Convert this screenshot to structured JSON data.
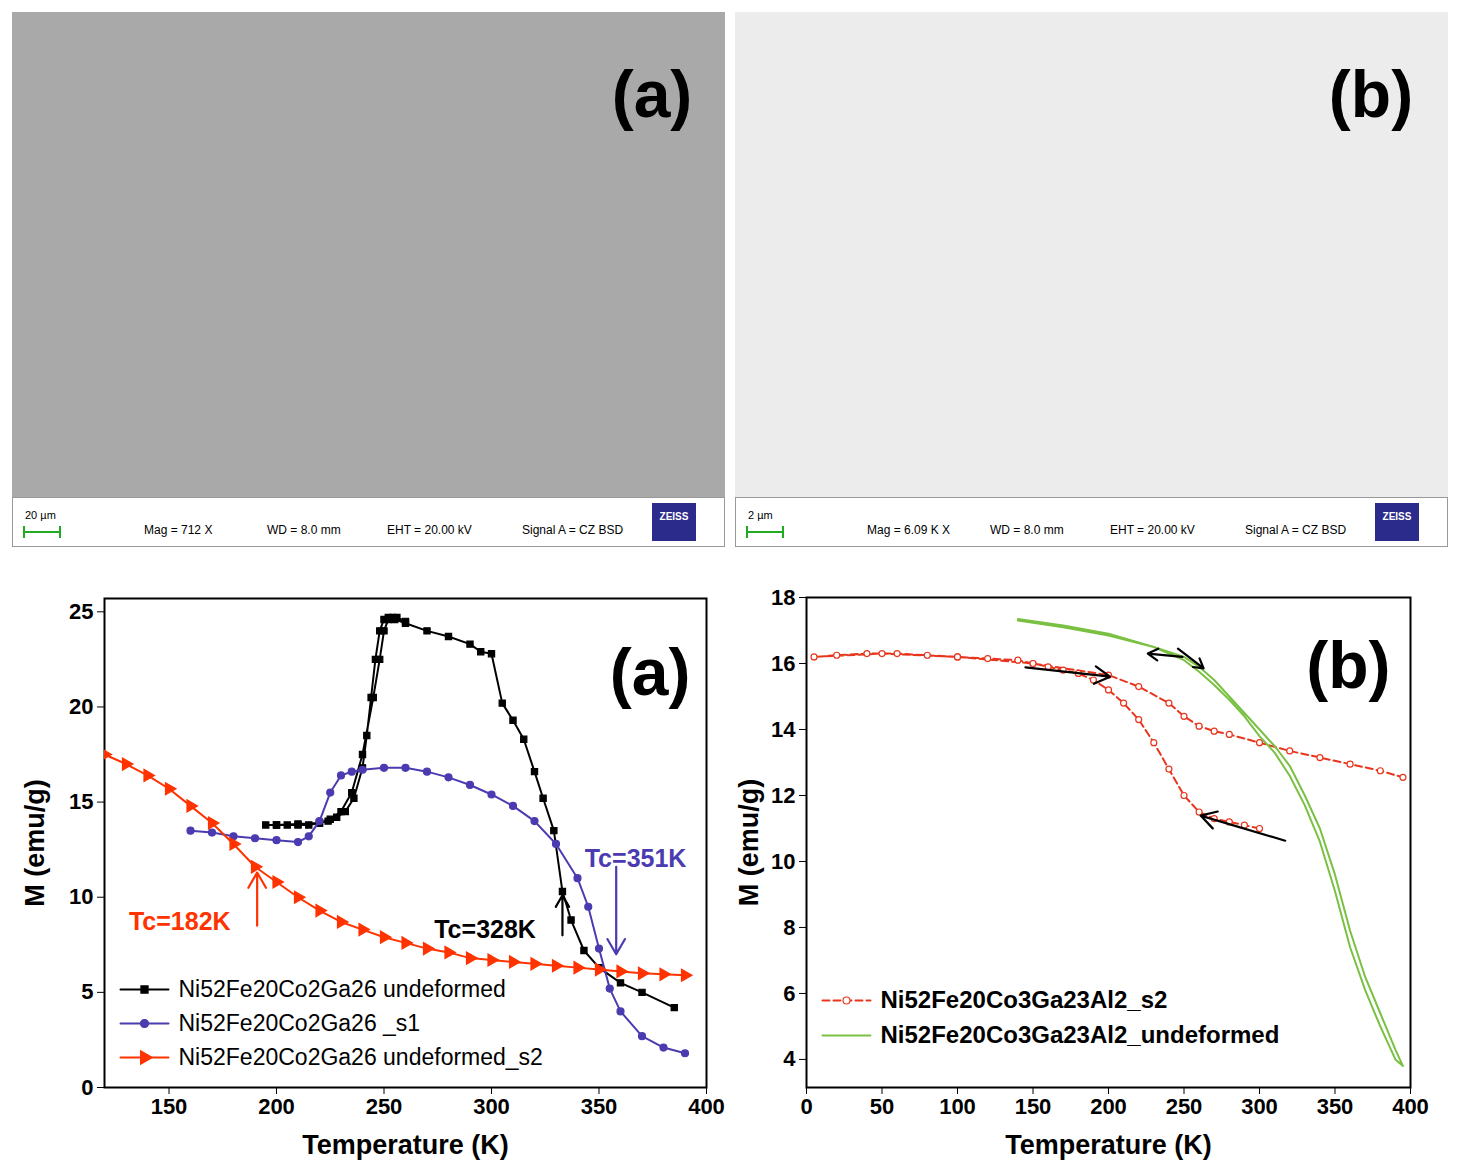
{
  "images": [
    {
      "label": "(a)",
      "scale_bar": "20 µm",
      "mag": "Mag = 712 X",
      "wd": "WD = 8.0 mm",
      "eht": "EHT = 20.00 kV",
      "signal": "Signal A = CZ BSD",
      "logo": "ZEISS"
    },
    {
      "label": "(b)",
      "scale_bar": "2 µm",
      "mag": "Mag = 6.09 K X",
      "wd": "WD = 8.0 mm",
      "eht": "EHT = 20.00 kV",
      "signal": "Signal A = CZ BSD",
      "logo": "ZEISS"
    }
  ],
  "chart_data": [
    {
      "type": "line",
      "panel_label": "(a)",
      "xlabel": "Temperature (K)",
      "ylabel": "M (emu/g)",
      "xlim": [
        120,
        400
      ],
      "ylim": [
        0,
        25.7
      ],
      "xticks": [
        150,
        200,
        250,
        300,
        350,
        400
      ],
      "yticks": [
        0,
        5,
        10,
        15,
        20,
        25
      ],
      "grid": false,
      "legend": "lower left",
      "series": [
        {
          "name": "Ni52Fe20Co2Ga26 undeformed",
          "color": "#000000",
          "marker": "square",
          "line_style": "solid",
          "x": [
            385,
            370,
            360,
            350,
            343,
            337,
            333,
            329,
            324,
            320,
            315,
            310,
            305,
            300,
            295,
            290,
            280,
            270,
            260,
            255,
            252,
            250,
            248,
            246,
            244,
            242,
            240,
            236,
            232,
            228,
            224,
            220,
            215,
            210,
            205,
            200,
            195,
            200,
            210,
            220,
            225,
            230,
            235,
            240,
            245,
            248,
            250,
            252,
            254,
            256,
            260
          ],
          "values": [
            4.2,
            5.0,
            5.5,
            6.3,
            7.2,
            8.8,
            10.3,
            13.5,
            15.2,
            16.6,
            18.3,
            19.3,
            20.2,
            22.8,
            22.9,
            23.3,
            23.7,
            24.0,
            24.4,
            24.6,
            24.7,
            24.6,
            24.0,
            22.5,
            20.5,
            18.5,
            16.8,
            15.2,
            14.5,
            14.2,
            14.0,
            13.9,
            13.8,
            13.8,
            13.8,
            13.8,
            13.8,
            13.8,
            13.85,
            13.9,
            14.1,
            14.5,
            15.5,
            17.5,
            20.5,
            22.5,
            24.0,
            24.6,
            24.7,
            24.7,
            24.5
          ]
        },
        {
          "name": "Ni52Fe20Co2Ga26 _s1",
          "color": "#4b3bb0",
          "marker": "circle",
          "line_style": "solid",
          "x": [
            160,
            170,
            180,
            190,
            200,
            210,
            215,
            220,
            225,
            230,
            235,
            240,
            250,
            260,
            270,
            280,
            290,
            300,
            310,
            320,
            330,
            340,
            345,
            350,
            355,
            360,
            370,
            380,
            390
          ],
          "values": [
            13.5,
            13.4,
            13.2,
            13.1,
            13.0,
            12.9,
            13.2,
            14.0,
            15.5,
            16.4,
            16.6,
            16.7,
            16.8,
            16.8,
            16.6,
            16.3,
            15.9,
            15.4,
            14.8,
            14.0,
            12.8,
            11.0,
            9.5,
            7.3,
            5.2,
            4.0,
            2.7,
            2.1,
            1.8
          ]
        },
        {
          "name": "Ni52Fe20Co2Ga26 undeformed_s2",
          "color": "#ff3300",
          "marker": "triangle-right",
          "line_style": "solid",
          "x": [
            120,
            130,
            140,
            150,
            160,
            170,
            180,
            190,
            200,
            210,
            220,
            230,
            240,
            250,
            260,
            270,
            280,
            290,
            300,
            310,
            320,
            330,
            340,
            350,
            360,
            370,
            380,
            390
          ],
          "values": [
            17.5,
            17.0,
            16.4,
            15.7,
            14.8,
            13.9,
            12.8,
            11.6,
            10.8,
            10.0,
            9.3,
            8.7,
            8.3,
            7.9,
            7.6,
            7.3,
            7.1,
            6.8,
            6.7,
            6.6,
            6.5,
            6.4,
            6.3,
            6.2,
            6.1,
            6.0,
            5.95,
            5.9
          ]
        }
      ],
      "annotations": [
        {
          "text": "Tc=182K",
          "x": 155,
          "y": 8.7,
          "color": "#ff3300",
          "arrow": {
            "x": 191,
            "y1": 8.5,
            "y2": 11.3
          }
        },
        {
          "text": "Tc=328K",
          "x": 297,
          "y": 8.3,
          "color": "#000000",
          "arrow": {
            "x": 333,
            "y1": 8.0,
            "y2": 10.1
          }
        },
        {
          "text": "Tc=351K",
          "x": 367,
          "y": 12.0,
          "color": "#4b3bb0",
          "arrow": {
            "x": 358,
            "y1": 11.6,
            "y2": 7.0
          }
        }
      ]
    },
    {
      "type": "line",
      "panel_label": "(b)",
      "xlabel": "Temperature (K)",
      "ylabel": "M (emu/g)",
      "xlim": [
        0,
        400
      ],
      "ylim": [
        3.15,
        18
      ],
      "xticks": [
        0,
        50,
        100,
        150,
        200,
        250,
        300,
        350,
        400
      ],
      "yticks": [
        4,
        6,
        8,
        10,
        12,
        14,
        16,
        18
      ],
      "grid": false,
      "legend": "lower left",
      "series": [
        {
          "name": "Ni52Fe20Co3Ga23Al2_s2",
          "color": "#e8361e",
          "marker": "circle-open",
          "line_style": "dashed",
          "x": [
            300,
            290,
            280,
            270,
            260,
            250,
            240,
            230,
            220,
            210,
            200,
            190,
            180,
            170,
            160,
            150,
            140,
            120,
            100,
            80,
            60,
            40,
            20,
            5,
            50,
            100,
            150,
            200,
            220,
            240,
            250,
            260,
            270,
            280,
            300,
            320,
            340,
            360,
            380,
            395
          ],
          "values": [
            11.0,
            11.1,
            11.2,
            11.3,
            11.5,
            12.0,
            12.8,
            13.6,
            14.3,
            14.8,
            15.2,
            15.5,
            15.7,
            15.8,
            15.9,
            16.0,
            16.1,
            16.15,
            16.2,
            16.25,
            16.3,
            16.3,
            16.25,
            16.2,
            16.3,
            16.2,
            16.0,
            15.65,
            15.3,
            14.8,
            14.4,
            14.1,
            13.95,
            13.85,
            13.6,
            13.35,
            13.15,
            12.95,
            12.75,
            12.55
          ]
        },
        {
          "name": "Ni52Fe20Co3Ga23Al2_undeformed",
          "color": "#7ac143",
          "marker": "none",
          "line_style": "solid",
          "x": [
            140,
            170,
            200,
            230,
            250,
            260,
            270,
            280,
            290,
            300,
            310,
            320,
            330,
            340,
            350,
            360,
            370,
            380,
            390,
            395,
            390,
            380,
            370,
            360,
            350,
            340,
            330,
            320,
            310,
            300,
            290,
            280,
            270,
            260,
            250,
            230,
            200,
            170,
            140
          ],
          "values": [
            17.3,
            17.1,
            16.85,
            16.5,
            16.2,
            15.9,
            15.5,
            15.0,
            14.5,
            14.0,
            13.5,
            12.9,
            12.0,
            11.0,
            9.6,
            7.9,
            6.5,
            5.4,
            4.3,
            3.8,
            4.0,
            5.0,
            6.1,
            7.4,
            9.1,
            10.6,
            11.7,
            12.6,
            13.3,
            13.8,
            14.4,
            14.9,
            15.35,
            15.75,
            16.1,
            16.5,
            16.9,
            17.15,
            17.35
          ]
        }
      ],
      "arrows": [
        {
          "x1": 145,
          "y1": 15.88,
          "x2": 201,
          "y2": 15.6
        },
        {
          "x1": 317,
          "y1": 10.63,
          "x2": 261,
          "y2": 11.39
        },
        {
          "x1": 249,
          "y1": 16.2,
          "x2": 226,
          "y2": 16.3
        },
        {
          "x1": 246,
          "y1": 16.45,
          "x2": 263,
          "y2": 15.85
        }
      ]
    }
  ]
}
